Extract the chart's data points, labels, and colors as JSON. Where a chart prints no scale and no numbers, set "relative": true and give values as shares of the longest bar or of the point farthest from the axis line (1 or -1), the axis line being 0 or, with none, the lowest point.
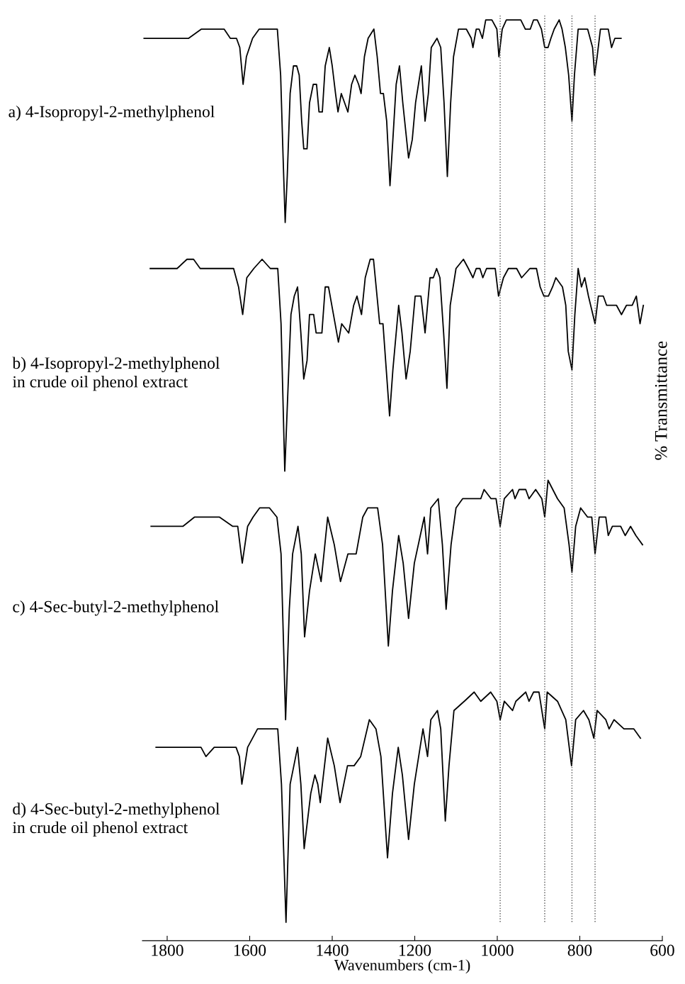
{
  "chart_data": {
    "type": "line",
    "relative": true,
    "xlabel": "Wavenumbers (cm-1)",
    "ylabel": "% Transmittance",
    "xlim": [
      1860,
      600
    ],
    "xticks": [
      1800,
      1600,
      1400,
      1200,
      1000,
      800,
      600
    ],
    "grid": false,
    "marker": "none",
    "line_style": "solid",
    "tick_labels": "x",
    "annotations": [
      "a) 4-Isopropyl-2-methylphenol",
      "b) 4-Isopropyl-2-methylphenol\nin crude oil phenol extract",
      "c) 4-Sec-butyl-2-methylphenol",
      "d) 4-Sec-butyl-2-methylphenol\nin crude oil phenol extract"
    ],
    "ref_lines": [
      {
        "axis": "x",
        "value": 993,
        "color": "#555555",
        "line_style": "dotted"
      },
      {
        "axis": "x",
        "value": 885,
        "color": "#555555",
        "line_style": "dotted"
      },
      {
        "axis": "x",
        "value": 819,
        "color": "#555555",
        "line_style": "dotted"
      },
      {
        "axis": "x",
        "value": 763,
        "color": "#555555",
        "line_style": "dotted"
      }
    ],
    "series": [
      {
        "color": "#000000",
        "x": [
          1856,
          1802,
          1767,
          1748,
          1717,
          1686,
          1662,
          1647,
          1632,
          1624,
          1616,
          1608,
          1593,
          1577,
          1562,
          1546,
          1533,
          1525,
          1519,
          1514,
          1509,
          1502,
          1494,
          1486,
          1480,
          1474,
          1469,
          1461,
          1455,
          1446,
          1438,
          1432,
          1424,
          1417,
          1407,
          1400,
          1392,
          1386,
          1378,
          1362,
          1353,
          1345,
          1336,
          1330,
          1322,
          1313,
          1299,
          1291,
          1283,
          1276,
          1268,
          1260,
          1253,
          1245,
          1237,
          1229,
          1215,
          1206,
          1198,
          1184,
          1175,
          1167,
          1160,
          1146,
          1137,
          1129,
          1121,
          1113,
          1106,
          1094,
          1075,
          1063,
          1059,
          1051,
          1044,
          1036,
          1028,
          1013,
          1001,
          996,
          988,
          978,
          959,
          943,
          932,
          924,
          920,
          912,
          903,
          893,
          885,
          877,
          870,
          862,
          850,
          843,
          835,
          827,
          819,
          813,
          804,
          792,
          781,
          769,
          764,
          758,
          750,
          738,
          731,
          723,
          715,
          707,
          700
        ],
        "values": [
          0.98,
          0.98,
          0.98,
          0.98,
          0.99,
          0.99,
          0.99,
          0.98,
          0.98,
          0.97,
          0.93,
          0.96,
          0.98,
          0.99,
          0.99,
          0.99,
          0.99,
          0.94,
          0.85,
          0.78,
          0.83,
          0.92,
          0.95,
          0.95,
          0.94,
          0.89,
          0.86,
          0.86,
          0.91,
          0.93,
          0.93,
          0.9,
          0.9,
          0.95,
          0.97,
          0.95,
          0.92,
          0.9,
          0.92,
          0.9,
          0.93,
          0.94,
          0.93,
          0.92,
          0.96,
          0.98,
          0.99,
          0.96,
          0.92,
          0.92,
          0.89,
          0.82,
          0.87,
          0.93,
          0.95,
          0.91,
          0.85,
          0.87,
          0.91,
          0.95,
          0.89,
          0.92,
          0.97,
          0.98,
          0.97,
          0.91,
          0.83,
          0.91,
          0.96,
          0.99,
          0.99,
          0.98,
          0.97,
          0.99,
          0.99,
          0.98,
          1.0,
          1.0,
          0.99,
          0.96,
          0.99,
          1.0,
          1.0,
          1.0,
          0.99,
          0.99,
          0.99,
          1.0,
          1.0,
          0.99,
          0.97,
          0.97,
          0.98,
          0.99,
          1.0,
          0.99,
          0.97,
          0.94,
          0.89,
          0.94,
          0.99,
          0.99,
          0.99,
          0.97,
          0.94,
          0.96,
          0.99,
          0.99,
          0.99,
          0.97,
          0.98,
          0.98,
          0.98
        ]
      },
      {
        "color": "#000000",
        "x": [
          1841,
          1800,
          1776,
          1752,
          1736,
          1720,
          1687,
          1663,
          1639,
          1627,
          1617,
          1607,
          1590,
          1570,
          1550,
          1532,
          1524,
          1515,
          1508,
          1500,
          1492,
          1484,
          1476,
          1469,
          1461,
          1455,
          1445,
          1439,
          1425,
          1417,
          1409,
          1397,
          1385,
          1377,
          1360,
          1348,
          1340,
          1329,
          1320,
          1308,
          1300,
          1285,
          1277,
          1269,
          1261,
          1253,
          1239,
          1231,
          1221,
          1211,
          1199,
          1185,
          1175,
          1163,
          1155,
          1147,
          1139,
          1130,
          1122,
          1114,
          1100,
          1082,
          1070,
          1059,
          1051,
          1042,
          1035,
          1026,
          1013,
          1005,
          997,
          985,
          973,
          953,
          941,
          921,
          905,
          896,
          887,
          876,
          866,
          858,
          842,
          834,
          828,
          819,
          812,
          804,
          796,
          788,
          779,
          763,
          755,
          743,
          735,
          723,
          711,
          699,
          687,
          673,
          663,
          654,
          646
        ],
        "values": [
          0.73,
          0.73,
          0.73,
          0.74,
          0.74,
          0.73,
          0.73,
          0.73,
          0.73,
          0.71,
          0.68,
          0.72,
          0.73,
          0.74,
          0.73,
          0.73,
          0.67,
          0.51,
          0.59,
          0.68,
          0.7,
          0.71,
          0.66,
          0.61,
          0.63,
          0.68,
          0.68,
          0.66,
          0.66,
          0.71,
          0.71,
          0.68,
          0.65,
          0.67,
          0.66,
          0.69,
          0.7,
          0.68,
          0.72,
          0.74,
          0.74,
          0.67,
          0.67,
          0.62,
          0.57,
          0.62,
          0.69,
          0.66,
          0.61,
          0.64,
          0.7,
          0.7,
          0.66,
          0.72,
          0.72,
          0.73,
          0.72,
          0.66,
          0.6,
          0.69,
          0.73,
          0.74,
          0.73,
          0.72,
          0.73,
          0.73,
          0.72,
          0.73,
          0.73,
          0.73,
          0.7,
          0.72,
          0.73,
          0.73,
          0.72,
          0.73,
          0.73,
          0.71,
          0.7,
          0.7,
          0.71,
          0.72,
          0.71,
          0.69,
          0.64,
          0.62,
          0.68,
          0.73,
          0.71,
          0.72,
          0.7,
          0.67,
          0.7,
          0.7,
          0.69,
          0.69,
          0.69,
          0.68,
          0.69,
          0.69,
          0.7,
          0.67,
          0.69
        ]
      },
      {
        "color": "#000000",
        "x": [
          1839,
          1802,
          1762,
          1734,
          1705,
          1673,
          1641,
          1629,
          1618,
          1605,
          1592,
          1576,
          1560,
          1552,
          1534,
          1524,
          1513,
          1504,
          1496,
          1483,
          1475,
          1467,
          1455,
          1441,
          1427,
          1411,
          1395,
          1380,
          1362,
          1342,
          1326,
          1314,
          1302,
          1295,
          1290,
          1278,
          1264,
          1254,
          1239,
          1228,
          1215,
          1201,
          1177,
          1169,
          1161,
          1143,
          1133,
          1124,
          1112,
          1100,
          1084,
          1060,
          1040,
          1032,
          1015,
          1003,
          993,
          983,
          963,
          957,
          947,
          931,
          923,
          907,
          892,
          885,
          877,
          854,
          838,
          826,
          819,
          810,
          798,
          781,
          771,
          763,
          753,
          737,
          731,
          721,
          701,
          690,
          677,
          664,
          648
        ],
        "values": [
          0.45,
          0.45,
          0.45,
          0.46,
          0.46,
          0.46,
          0.45,
          0.45,
          0.41,
          0.45,
          0.46,
          0.47,
          0.47,
          0.47,
          0.46,
          0.42,
          0.24,
          0.36,
          0.42,
          0.45,
          0.42,
          0.33,
          0.38,
          0.42,
          0.39,
          0.46,
          0.43,
          0.39,
          0.42,
          0.42,
          0.46,
          0.47,
          0.47,
          0.47,
          0.47,
          0.43,
          0.32,
          0.38,
          0.44,
          0.41,
          0.35,
          0.41,
          0.46,
          0.42,
          0.47,
          0.48,
          0.43,
          0.36,
          0.43,
          0.47,
          0.48,
          0.48,
          0.48,
          0.49,
          0.48,
          0.48,
          0.45,
          0.48,
          0.49,
          0.48,
          0.49,
          0.49,
          0.48,
          0.49,
          0.48,
          0.46,
          0.5,
          0.48,
          0.47,
          0.43,
          0.4,
          0.45,
          0.47,
          0.46,
          0.46,
          0.42,
          0.46,
          0.46,
          0.44,
          0.45,
          0.45,
          0.44,
          0.45,
          0.44,
          0.43
        ]
      },
      {
        "color": "#000000",
        "x": [
          1827,
          1782,
          1750,
          1718,
          1706,
          1686,
          1661,
          1633,
          1625,
          1619,
          1605,
          1581,
          1556,
          1532,
          1523,
          1512,
          1502,
          1484,
          1476,
          1468,
          1452,
          1442,
          1435,
          1429,
          1411,
          1395,
          1381,
          1363,
          1347,
          1331,
          1310,
          1294,
          1282,
          1266,
          1254,
          1240,
          1230,
          1215,
          1201,
          1180,
          1169,
          1161,
          1145,
          1137,
          1126,
          1117,
          1105,
          1080,
          1056,
          1040,
          1016,
          1001,
          993,
          983,
          963,
          955,
          931,
          923,
          912,
          899,
          885,
          879,
          854,
          834,
          820,
          810,
          791,
          778,
          766,
          758,
          737,
          729,
          717,
          693,
          677,
          669,
          653
        ],
        "values": [
          0.21,
          0.21,
          0.21,
          0.21,
          0.2,
          0.21,
          0.21,
          0.21,
          0.2,
          0.17,
          0.21,
          0.23,
          0.23,
          0.23,
          0.17,
          0.02,
          0.17,
          0.21,
          0.17,
          0.1,
          0.16,
          0.18,
          0.17,
          0.15,
          0.22,
          0.19,
          0.15,
          0.19,
          0.19,
          0.2,
          0.24,
          0.23,
          0.2,
          0.09,
          0.16,
          0.21,
          0.18,
          0.11,
          0.17,
          0.23,
          0.2,
          0.24,
          0.25,
          0.23,
          0.13,
          0.19,
          0.25,
          0.26,
          0.27,
          0.26,
          0.27,
          0.26,
          0.24,
          0.26,
          0.25,
          0.26,
          0.27,
          0.26,
          0.27,
          0.27,
          0.23,
          0.27,
          0.26,
          0.24,
          0.19,
          0.24,
          0.25,
          0.24,
          0.22,
          0.25,
          0.24,
          0.23,
          0.24,
          0.23,
          0.23,
          0.23,
          0.22
        ]
      }
    ]
  }
}
